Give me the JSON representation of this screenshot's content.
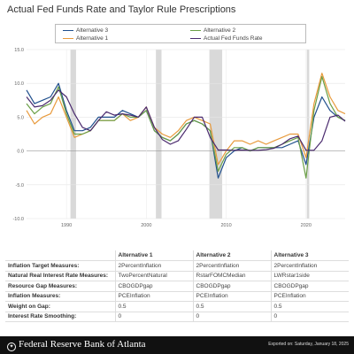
{
  "title": "Actual Fed Funds Rate and Taylor Rule Prescriptions",
  "chart_data": {
    "type": "line",
    "ylim": [
      -10,
      15
    ],
    "xlim": [
      1985,
      2024.9
    ],
    "y_ticks": [
      "15.0",
      "10.0",
      "5.0",
      "0.0",
      "-5.0",
      "-10.0"
    ],
    "y_tick_values": [
      15,
      10,
      5,
      0,
      -5,
      -10
    ],
    "x_ticks": [
      "1990",
      "2000",
      "2010",
      "2020"
    ],
    "x_tick_values": [
      1990,
      2000,
      2010,
      2020
    ],
    "recessions": [
      [
        1990.5,
        1991.2
      ],
      [
        2001.2,
        2001.9
      ],
      [
        2007.9,
        2009.5
      ],
      [
        2020.1,
        2020.4
      ]
    ],
    "grid": true,
    "legend_position": "top",
    "series": [
      {
        "name": "Alternative 3",
        "color": "#1f4e8c",
        "points": [
          [
            1985,
            9
          ],
          [
            1986,
            7
          ],
          [
            1987,
            7.5
          ],
          [
            1988,
            8
          ],
          [
            1989,
            10
          ],
          [
            1990,
            6
          ],
          [
            1991,
            3
          ],
          [
            1992,
            3
          ],
          [
            1993,
            3.5
          ],
          [
            1994,
            5
          ],
          [
            1995,
            5
          ],
          [
            1996,
            5
          ],
          [
            1997,
            6
          ],
          [
            1998,
            5.5
          ],
          [
            1999,
            5
          ],
          [
            2000,
            6
          ],
          [
            2001,
            3
          ],
          [
            2002,
            2
          ],
          [
            2003,
            1.5
          ],
          [
            2004,
            2.5
          ],
          [
            2005,
            4
          ],
          [
            2006,
            4.5
          ],
          [
            2007,
            4
          ],
          [
            2008,
            3
          ],
          [
            2009,
            -4
          ],
          [
            2010,
            -1
          ],
          [
            2011,
            0
          ],
          [
            2012,
            0.5
          ],
          [
            2013,
            0
          ],
          [
            2014,
            0.5
          ],
          [
            2015,
            0.5
          ],
          [
            2016,
            0.5
          ],
          [
            2017,
            0.5
          ],
          [
            2018,
            1
          ],
          [
            2019,
            1.5
          ],
          [
            2020,
            -2
          ],
          [
            2021,
            5
          ],
          [
            2022,
            8
          ],
          [
            2023,
            6
          ],
          [
            2024,
            5
          ],
          [
            2024.9,
            4.5
          ]
        ]
      },
      {
        "name": "Alternative 1",
        "color": "#e89a3c",
        "points": [
          [
            1985,
            6
          ],
          [
            1986,
            4
          ],
          [
            1987,
            5
          ],
          [
            1988,
            5.5
          ],
          [
            1989,
            8
          ],
          [
            1990,
            5
          ],
          [
            1991,
            2
          ],
          [
            1992,
            2.5
          ],
          [
            1993,
            3
          ],
          [
            1994,
            4.5
          ],
          [
            1995,
            4.5
          ],
          [
            1996,
            4.5
          ],
          [
            1997,
            5.5
          ],
          [
            1998,
            4.5
          ],
          [
            1999,
            5
          ],
          [
            2000,
            6.5
          ],
          [
            2001,
            3.5
          ],
          [
            2002,
            2.5
          ],
          [
            2003,
            2
          ],
          [
            2004,
            3
          ],
          [
            2005,
            4.5
          ],
          [
            2006,
            5
          ],
          [
            2007,
            4.5
          ],
          [
            2008,
            4
          ],
          [
            2009,
            -2
          ],
          [
            2010,
            0
          ],
          [
            2011,
            1.5
          ],
          [
            2012,
            1.5
          ],
          [
            2013,
            1
          ],
          [
            2014,
            1.5
          ],
          [
            2015,
            1
          ],
          [
            2016,
            1.5
          ],
          [
            2017,
            2
          ],
          [
            2018,
            2.5
          ],
          [
            2019,
            2.5
          ],
          [
            2020,
            -1
          ],
          [
            2021,
            7
          ],
          [
            2022,
            11.5
          ],
          [
            2023,
            8
          ],
          [
            2024,
            6
          ],
          [
            2024.9,
            5.5
          ]
        ]
      },
      {
        "name": "Alternative 2",
        "color": "#6a9f46",
        "points": [
          [
            1985,
            7
          ],
          [
            1986,
            5.5
          ],
          [
            1987,
            6.5
          ],
          [
            1988,
            7
          ],
          [
            1989,
            9.5
          ],
          [
            1990,
            5.5
          ],
          [
            1991,
            2.5
          ],
          [
            1992,
            2.5
          ],
          [
            1993,
            3
          ],
          [
            1994,
            4.5
          ],
          [
            1995,
            4.5
          ],
          [
            1996,
            4.5
          ],
          [
            1997,
            5.5
          ],
          [
            1998,
            5
          ],
          [
            1999,
            5
          ],
          [
            2000,
            6
          ],
          [
            2001,
            3
          ],
          [
            2002,
            2
          ],
          [
            2003,
            1.5
          ],
          [
            2004,
            2.5
          ],
          [
            2005,
            4
          ],
          [
            2006,
            4.5
          ],
          [
            2007,
            4
          ],
          [
            2008,
            3
          ],
          [
            2009,
            -3
          ],
          [
            2010,
            -0.5
          ],
          [
            2011,
            0.5
          ],
          [
            2012,
            0.5
          ],
          [
            2013,
            0
          ],
          [
            2014,
            0.5
          ],
          [
            2015,
            0.5
          ],
          [
            2016,
            0.5
          ],
          [
            2017,
            1
          ],
          [
            2018,
            1.5
          ],
          [
            2019,
            2
          ],
          [
            2020,
            -4
          ],
          [
            2021,
            6
          ],
          [
            2022,
            11
          ],
          [
            2023,
            7
          ],
          [
            2024,
            5
          ],
          [
            2024.9,
            4.5
          ]
        ]
      },
      {
        "name": "Actual Fed Funds Rate",
        "color": "#4a2a6e",
        "points": [
          [
            1985,
            8
          ],
          [
            1986,
            6.5
          ],
          [
            1987,
            6.7
          ],
          [
            1988,
            7.5
          ],
          [
            1989,
            9
          ],
          [
            1990,
            8
          ],
          [
            1991,
            5.5
          ],
          [
            1992,
            3.5
          ],
          [
            1993,
            3
          ],
          [
            1994,
            4.5
          ],
          [
            1995,
            5.8
          ],
          [
            1996,
            5.3
          ],
          [
            1997,
            5.5
          ],
          [
            1998,
            5.3
          ],
          [
            1999,
            5
          ],
          [
            2000,
            6.5
          ],
          [
            2001,
            3.5
          ],
          [
            2002,
            1.7
          ],
          [
            2003,
            1
          ],
          [
            2004,
            1.5
          ],
          [
            2005,
            3.2
          ],
          [
            2006,
            5
          ],
          [
            2007,
            5
          ],
          [
            2008,
            2
          ],
          [
            2009,
            0.15
          ],
          [
            2010,
            0.15
          ],
          [
            2011,
            0.1
          ],
          [
            2012,
            0.15
          ],
          [
            2013,
            0.1
          ],
          [
            2014,
            0.1
          ],
          [
            2015,
            0.2
          ],
          [
            2016,
            0.4
          ],
          [
            2017,
            1
          ],
          [
            2018,
            1.8
          ],
          [
            2019,
            2.2
          ],
          [
            2020,
            0.1
          ],
          [
            2021,
            0.1
          ],
          [
            2022,
            1.5
          ],
          [
            2023,
            5
          ],
          [
            2024,
            5.3
          ],
          [
            2024.9,
            4.4
          ]
        ]
      }
    ]
  },
  "table": {
    "headers": [
      "",
      "Alternative 1",
      "Alternative 2",
      "Alternative 3"
    ],
    "rows": [
      [
        "Inflation Target Measures:",
        "2PercentInflation",
        "2PercentInflation",
        "2PercentInflation"
      ],
      [
        "Natural Real Interest Rate Measures:",
        "TwoPercentNatural",
        "RstarFOMCMedian",
        "LWRstar1side"
      ],
      [
        "Resource Gap Measures:",
        "CBOGDPgap",
        "CBOGDPgap",
        "CBOGDPgap"
      ],
      [
        "Inflation Measures:",
        "PCEInflation",
        "PCEInflation",
        "PCEInflation"
      ],
      [
        "Weight on Gap:",
        "0.5",
        "0.5",
        "0.5"
      ],
      [
        "Interest Rate Smoothing:",
        "0",
        "0",
        "0"
      ]
    ]
  },
  "footer": {
    "org_name": "Federal Reserve Bank of Atlanta",
    "exported": "Exported on: Saturday, January 18, 2025"
  }
}
